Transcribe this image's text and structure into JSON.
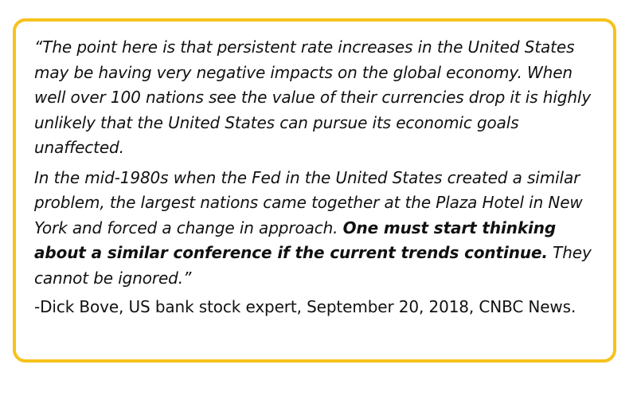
{
  "quote": {
    "paragraph_1": "“The point here is that persistent rate increases in the United States may be having very negative impacts on the global economy. When well over 100 nations see the value of their currencies drop it is highly unlikely that the United States can pursue its economic goals unaffected.",
    "paragraph_2_start": "In the mid-1980s when the Fed in the United States created a similar problem, the largest nations came together at the Plaza Hotel in New York and forced a change in approach. ",
    "paragraph_2_bold": "One must start thinking about a similar conference if the current trends continue.",
    "paragraph_2_end": " They cannot be ignored.”"
  },
  "attribution": "-Dick Bove, US bank stock expert, September 20, 2018, CNBC News.",
  "colors": {
    "border": "#f6c21c",
    "text": "#111111",
    "background": "#ffffff"
  }
}
